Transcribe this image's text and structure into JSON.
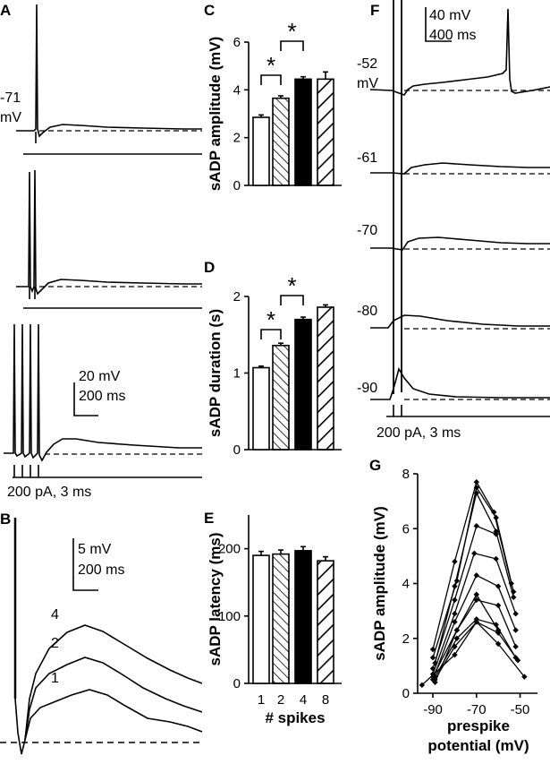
{
  "panels": {
    "A": "A",
    "B": "B",
    "C": "C",
    "D": "D",
    "E": "E",
    "F": "F",
    "G": "G"
  },
  "panel_a": {
    "rmp_value": "-71",
    "rmp_unit": "mV",
    "scale_v": "20 mV",
    "scale_t": "200 ms",
    "stim": "200 pA, 3 ms",
    "spike_counts": [
      1,
      2,
      4
    ]
  },
  "panel_b": {
    "scale_v": "5 mV",
    "scale_t": "200 ms",
    "trace_labels": [
      "4",
      "2",
      "1"
    ]
  },
  "panel_f": {
    "scale_v": "40 mV",
    "scale_t": "400 ms",
    "unit": "mV",
    "stim": "200 pA, 3 ms",
    "potentials": [
      "-52",
      "-61",
      "-70",
      "-80",
      "-90"
    ]
  },
  "bar_x_label": "# spikes",
  "significance_marker": "*",
  "chart_data": [
    {
      "panel": "C",
      "type": "bar",
      "categories": [
        "1",
        "2",
        "4",
        "8"
      ],
      "values": [
        2.85,
        3.65,
        4.45,
        4.45
      ],
      "errors": [
        0.1,
        0.1,
        0.1,
        0.3
      ],
      "fills": [
        "open",
        "hatched",
        "black",
        "wide-hatched"
      ],
      "ylabel": "sADP amplitude (mV)",
      "ylim": [
        0,
        6
      ],
      "yticks": [
        0,
        2,
        4,
        6
      ],
      "significance": [
        [
          0,
          1
        ],
        [
          1,
          2
        ]
      ]
    },
    {
      "panel": "D",
      "type": "bar",
      "categories": [
        "1",
        "2",
        "4",
        "8"
      ],
      "values": [
        1.07,
        1.36,
        1.7,
        1.86
      ],
      "errors": [
        0.02,
        0.03,
        0.03,
        0.03
      ],
      "fills": [
        "open",
        "hatched",
        "black",
        "wide-hatched"
      ],
      "ylabel": "sADP duration (s)",
      "ylim": [
        0,
        2
      ],
      "yticks": [
        0,
        1,
        2
      ],
      "significance": [
        [
          0,
          1
        ],
        [
          1,
          2
        ]
      ]
    },
    {
      "panel": "E",
      "type": "bar",
      "categories": [
        "1",
        "2",
        "4",
        "8"
      ],
      "values": [
        190,
        192,
        197,
        182
      ],
      "errors": [
        6,
        6,
        6,
        6
      ],
      "fills": [
        "open",
        "hatched",
        "black",
        "wide-hatched"
      ],
      "ylabel": "sADP latency (ms)",
      "xlabel": "# spikes",
      "ylim": [
        0,
        250
      ],
      "yticks": [
        0,
        100,
        200
      ]
    },
    {
      "panel": "G",
      "type": "line",
      "ylabel": "sADP amplitude (mV)",
      "xlabel_lines": [
        "prespike",
        "potential (mV)"
      ],
      "xlim": [
        -97,
        -42
      ],
      "ylim": [
        0,
        8
      ],
      "xticks": [
        -90,
        -70,
        -50
      ],
      "yticks": [
        0,
        2,
        4,
        6,
        8
      ],
      "series": [
        {
          "x": [
            -90,
            -80,
            -70,
            -62,
            -54
          ],
          "y": [
            1.6,
            4.8,
            7.7,
            6.6,
            4.0
          ]
        },
        {
          "x": [
            -90,
            -79,
            -70,
            -61,
            -53
          ],
          "y": [
            1.3,
            4.1,
            7.5,
            6.4,
            3.7
          ]
        },
        {
          "x": [
            -89,
            -80,
            -70,
            -61,
            -53
          ],
          "y": [
            1.1,
            3.9,
            7.3,
            5.9,
            3.5
          ]
        },
        {
          "x": [
            -90,
            -80,
            -70,
            -61
          ],
          "y": [
            0.9,
            3.4,
            6.1,
            5.8
          ]
        },
        {
          "x": [
            -90,
            -80,
            -71,
            -61,
            -52
          ],
          "y": [
            0.7,
            2.9,
            5.1,
            4.9,
            2.9
          ]
        },
        {
          "x": [
            -90,
            -80,
            -70,
            -60,
            -52
          ],
          "y": [
            0.5,
            2.6,
            4.3,
            3.9,
            2.3
          ]
        },
        {
          "x": [
            -89,
            -79,
            -70,
            -60,
            -52
          ],
          "y": [
            0.4,
            2.3,
            3.4,
            3.2,
            1.7
          ]
        },
        {
          "x": [
            -89,
            -79,
            -70,
            -61,
            -52
          ],
          "y": [
            0.6,
            2.0,
            2.7,
            2.5,
            1.3
          ]
        },
        {
          "x": [
            -89,
            -80,
            -70,
            -60,
            -51
          ],
          "y": [
            0.5,
            1.7,
            2.6,
            2.2,
            1.2
          ]
        },
        {
          "x": [
            -95,
            -80,
            -70,
            -60,
            -48
          ],
          "y": [
            0.3,
            1.4,
            2.6,
            1.8,
            0.6
          ]
        },
        {
          "x": [
            -90,
            -79,
            -70,
            -60
          ],
          "y": [
            0.6,
            2.3,
            3.6,
            2.3
          ]
        }
      ]
    }
  ]
}
